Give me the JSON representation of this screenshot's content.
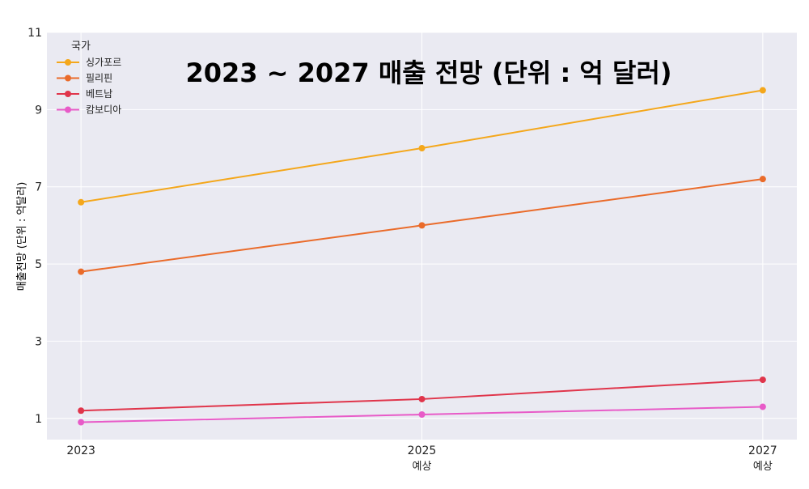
{
  "chart_data": {
    "type": "line",
    "title": "2023 ~ 2027 매출 전망 (단위 : 억 달러)",
    "xlabel": "",
    "ylabel": "매출전망 (단위 : 억달러)",
    "x_ticks": [
      {
        "value": 2023,
        "label": "2023",
        "sublabel": ""
      },
      {
        "value": 2025,
        "label": "2025",
        "sublabel": "예상"
      },
      {
        "value": 2027,
        "label": "2027",
        "sublabel": "예상"
      }
    ],
    "y_ticks": [
      1,
      3,
      5,
      7,
      9,
      11
    ],
    "xlim": [
      2022.8,
      2027.2
    ],
    "ylim": [
      0.45,
      11
    ],
    "grid": true,
    "legend": {
      "title": "국가",
      "position": "top-left"
    },
    "x": [
      2023,
      2025,
      2027
    ],
    "series": [
      {
        "name": "싱가포르",
        "color": "#F4A71B",
        "values": [
          6.6,
          8.0,
          9.5
        ]
      },
      {
        "name": "필리핀",
        "color": "#EA6B2A",
        "values": [
          4.8,
          6.0,
          7.2
        ]
      },
      {
        "name": "베트남",
        "color": "#E0354B",
        "values": [
          1.2,
          1.5,
          2.0
        ]
      },
      {
        "name": "캄보디아",
        "color": "#E85BC8",
        "values": [
          0.9,
          1.1,
          1.3
        ]
      }
    ],
    "background": "#EAEAF2"
  }
}
